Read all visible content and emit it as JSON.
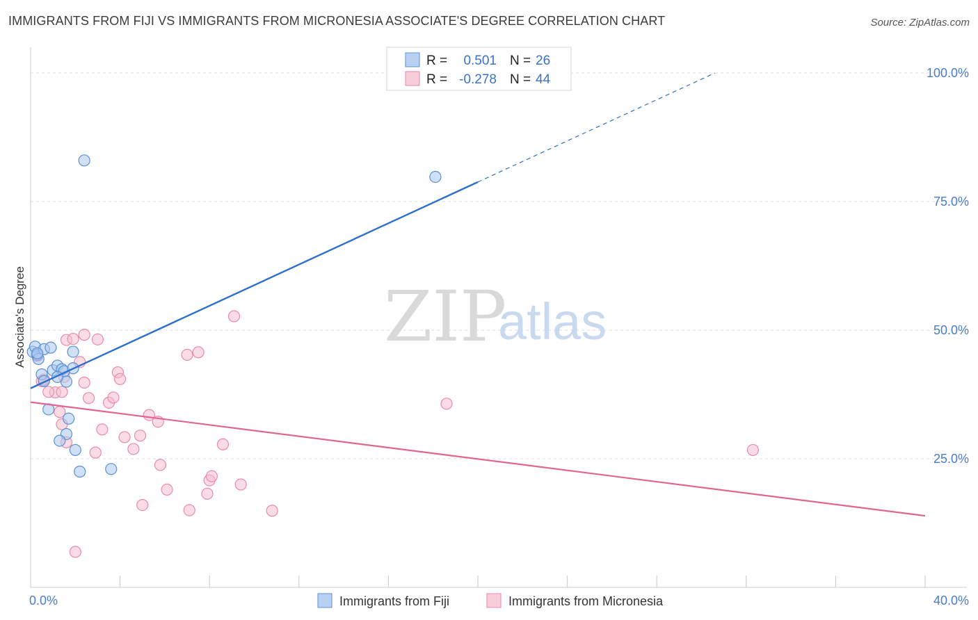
{
  "title": "IMMIGRANTS FROM FIJI VS IMMIGRANTS FROM MICRONESIA ASSOCIATE'S DEGREE CORRELATION CHART",
  "source": "Source: ZipAtlas.com",
  "watermark": {
    "zip": "ZIP",
    "atlas": "atlas"
  },
  "colors": {
    "fiji_fill": "#a9c8ef",
    "fiji_stroke": "#5b8fd6",
    "fiji_line": "#2f6fcc",
    "micro_fill": "#f7bfd0",
    "micro_stroke": "#e88aaa",
    "micro_line": "#e0668f",
    "axis_text": "#4a7cc9",
    "grid": "#dddddd"
  },
  "legend": {
    "fiji": {
      "r_label": "R =",
      "r_value": "0.501",
      "n_label": "N =",
      "n_value": "26"
    },
    "micro": {
      "r_label": "R =",
      "r_value": "-0.278",
      "n_label": "N =",
      "n_value": "44"
    }
  },
  "chart_data": {
    "type": "scatter",
    "title": "IMMIGRANTS FROM FIJI VS IMMIGRANTS FROM MICRONESIA ASSOCIATE'S DEGREE CORRELATION CHART",
    "xlabel": "",
    "ylabel": "Associate's Degree",
    "xlim": [
      0,
      40
    ],
    "ylim": [
      0,
      105
    ],
    "x_tick_labels": [
      "0.0%",
      "40.0%"
    ],
    "y_ticks": [
      25,
      50,
      75,
      100
    ],
    "y_tick_labels": [
      "25.0%",
      "50.0%",
      "75.0%",
      "100.0%"
    ],
    "grid": true,
    "series": [
      {
        "name": "Immigrants from Fiji",
        "points": [
          [
            0.1,
            45.8
          ],
          [
            0.2,
            46.8
          ],
          [
            0.3,
            45.2
          ],
          [
            0.35,
            44.4
          ],
          [
            0.6,
            46.3
          ],
          [
            0.9,
            46.6
          ],
          [
            0.5,
            41.4
          ],
          [
            0.6,
            40.1
          ],
          [
            1.0,
            42.2
          ],
          [
            1.2,
            43.1
          ],
          [
            1.4,
            42.4
          ],
          [
            1.5,
            42.0
          ],
          [
            1.6,
            40.0
          ],
          [
            1.9,
            42.6
          ],
          [
            1.9,
            45.8
          ],
          [
            1.2,
            40.9
          ],
          [
            0.8,
            34.6
          ],
          [
            1.7,
            32.8
          ],
          [
            1.6,
            29.8
          ],
          [
            1.3,
            28.5
          ],
          [
            2.0,
            26.7
          ],
          [
            2.2,
            22.5
          ],
          [
            3.6,
            23.0
          ],
          [
            2.4,
            83.0
          ],
          [
            18.1,
            79.8
          ],
          [
            0.3,
            45.5
          ]
        ],
        "trend": {
          "x0": 0,
          "y0": 38.7,
          "x1": 20,
          "y1": 78.8,
          "x_dash_end": 30.6,
          "y_dash_end": 100.0
        }
      },
      {
        "name": "Immigrants from Micronesia",
        "points": [
          [
            0.3,
            45.0
          ],
          [
            0.5,
            40.1
          ],
          [
            1.1,
            37.9
          ],
          [
            1.4,
            38.0
          ],
          [
            1.6,
            48.1
          ],
          [
            1.9,
            48.3
          ],
          [
            2.4,
            49.1
          ],
          [
            3.0,
            48.2
          ],
          [
            2.2,
            43.8
          ],
          [
            2.4,
            39.8
          ],
          [
            2.6,
            36.8
          ],
          [
            1.3,
            34.1
          ],
          [
            1.4,
            31.7
          ],
          [
            1.6,
            28.2
          ],
          [
            2.9,
            26.2
          ],
          [
            3.2,
            30.7
          ],
          [
            3.5,
            35.9
          ],
          [
            3.7,
            36.9
          ],
          [
            3.9,
            41.8
          ],
          [
            4.0,
            40.5
          ],
          [
            4.2,
            29.2
          ],
          [
            4.6,
            26.9
          ],
          [
            4.9,
            29.5
          ],
          [
            5.3,
            33.5
          ],
          [
            5.7,
            32.2
          ],
          [
            5.0,
            16.0
          ],
          [
            5.8,
            23.8
          ],
          [
            6.1,
            19.0
          ],
          [
            7.1,
            15.0
          ],
          [
            7.0,
            45.2
          ],
          [
            7.5,
            45.7
          ],
          [
            7.9,
            18.2
          ],
          [
            8.0,
            20.8
          ],
          [
            8.1,
            21.6
          ],
          [
            8.6,
            27.8
          ],
          [
            9.1,
            52.7
          ],
          [
            9.4,
            20.0
          ],
          [
            10.8,
            14.9
          ],
          [
            18.6,
            35.7
          ],
          [
            32.3,
            26.7
          ],
          [
            2.0,
            6.9
          ],
          [
            0.8,
            38.0
          ],
          [
            1.5,
            40.9
          ],
          [
            0.6,
            40.4
          ]
        ],
        "trend": {
          "x0": 0,
          "y0": 36.0,
          "x1": 40,
          "y1": 13.9
        }
      }
    ]
  },
  "bottom_legend": {
    "fiji": "Immigrants from Fiji",
    "micro": "Immigrants from Micronesia"
  }
}
